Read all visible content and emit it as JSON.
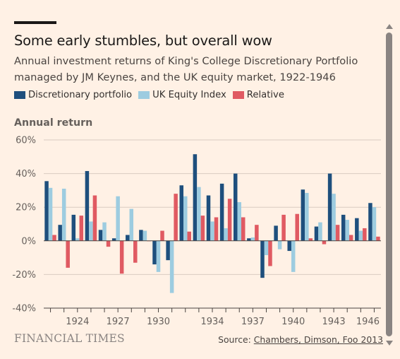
{
  "header": {
    "title": "Some early stumbles, but overall wow",
    "subtitle": "Annual investment returns of King's College Discretionary Portfolio managed by JM Keynes, and the UK equity market, 1922-1946"
  },
  "colors": {
    "background": "#fff1e5",
    "discretionary": "#1e4f7d",
    "uk_equity": "#9dcce0",
    "relative": "#e05a62",
    "gridline": "#d9ccc1",
    "zero_line": "#4a4441"
  },
  "chart_data": {
    "type": "bar",
    "title": "Some early stumbles, but overall wow",
    "subtitle": "Annual investment returns of King's College Discretionary Portfolio managed by JM Keynes, and the UK equity market, 1922-1946",
    "ylabel": "Annual return",
    "xlabel": "",
    "ylim": [
      -40,
      60
    ],
    "yticks": [
      60,
      40,
      20,
      0,
      -20,
      -40
    ],
    "ytick_labels": [
      "60%",
      "40%",
      "20%",
      "0%",
      "-20%",
      "-40%"
    ],
    "xtick_labels": [
      {
        "year": 1924,
        "label": "1924"
      },
      {
        "year": 1927,
        "label": "1927"
      },
      {
        "year": 1930,
        "label": "1930"
      },
      {
        "year": 1934,
        "label": "1934"
      },
      {
        "year": 1937,
        "label": "1937"
      },
      {
        "year": 1940,
        "label": "1940"
      },
      {
        "year": 1943,
        "label": "1943"
      },
      {
        "year": 1946,
        "label": "1946"
      }
    ],
    "grid": true,
    "legend_position": "top-left",
    "categories": [
      1922,
      1923,
      1924,
      1925,
      1926,
      1927,
      1928,
      1929,
      1930,
      1931,
      1932,
      1933,
      1934,
      1935,
      1936,
      1937,
      1938,
      1939,
      1940,
      1941,
      1942,
      1943,
      1944,
      1945,
      1946
    ],
    "series": [
      {
        "name": "Discretionary portfolio",
        "color": "#1e4f7d",
        "values": [
          35.5,
          9.5,
          15.5,
          41.5,
          6.5,
          1.5,
          3.5,
          6.5,
          -14,
          -11.5,
          33,
          51.5,
          27,
          34,
          40,
          1.5,
          -22,
          9,
          -6,
          30.5,
          8.5,
          40,
          15.5,
          13.5,
          22.5
        ]
      },
      {
        "name": "UK Equity Index",
        "color": "#9dcce0",
        "values": [
          31.5,
          31,
          1.5,
          11.5,
          11,
          26.5,
          19,
          6,
          -18.5,
          -31,
          26.5,
          32,
          11.5,
          7.5,
          23,
          2,
          -8.5,
          -5,
          -18.5,
          28.5,
          11,
          28,
          12.5,
          6,
          20
        ]
      },
      {
        "name": "Relative",
        "color": "#e05a62",
        "values": [
          3.5,
          -16,
          15,
          27,
          -3.5,
          -19.5,
          -13,
          0,
          6,
          28,
          5.5,
          15,
          14,
          25,
          14,
          9.5,
          -15,
          15.5,
          16,
          1.5,
          -2,
          9.5,
          3.5,
          7.5,
          2.5
        ]
      }
    ]
  },
  "legend": [
    {
      "label": "Discretionary portfolio",
      "color": "#1e4f7d"
    },
    {
      "label": "UK Equity Index",
      "color": "#9dcce0"
    },
    {
      "label": "Relative",
      "color": "#e05a62"
    }
  ],
  "footer": {
    "branding": "FINANCIAL TIMES",
    "source_prefix": "Source: ",
    "source_link": "Chambers, Dimson, Foo 2013"
  }
}
